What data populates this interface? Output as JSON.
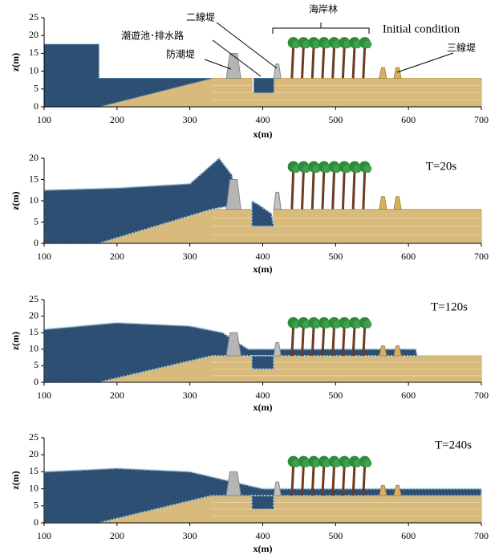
{
  "chart_data": [
    {
      "type": "simulation",
      "xlabel": "x(m)",
      "ylabel": "z(m)",
      "xlim": [
        100,
        700
      ],
      "xticks": [
        100,
        200,
        300,
        400,
        500,
        600,
        700
      ],
      "ylim": [
        0,
        25
      ],
      "yticks": [
        0,
        5,
        10,
        15,
        20,
        25
      ],
      "annotations": [
        "海岸林",
        "二線堤",
        "潮遊池･排水路",
        "防潮堤",
        "Initial  condition",
        "三線堤"
      ]
    },
    {
      "type": "simulation",
      "xlabel": "x(m)",
      "ylabel": "z(m)",
      "xlim": [
        100,
        700
      ],
      "xticks": [
        100,
        200,
        300,
        400,
        500,
        600,
        700
      ],
      "ylim": [
        0,
        20
      ],
      "yticks": [
        0,
        5,
        10,
        15,
        20
      ],
      "annotations": [
        "T=20s"
      ]
    },
    {
      "type": "simulation",
      "xlabel": "x(m)",
      "ylabel": "z(m)",
      "xlim": [
        100,
        700
      ],
      "xticks": [
        100,
        200,
        300,
        400,
        500,
        600,
        700
      ],
      "ylim": [
        0,
        25
      ],
      "yticks": [
        0,
        5,
        10,
        15,
        20,
        25
      ],
      "annotations": [
        "T=120s"
      ]
    },
    {
      "type": "simulation",
      "xlabel": "x(m)",
      "ylabel": "z(m)",
      "xlim": [
        100,
        700
      ],
      "xticks": [
        100,
        200,
        300,
        400,
        500,
        600,
        700
      ],
      "ylim": [
        0,
        25
      ],
      "yticks": [
        0,
        5,
        10,
        15,
        20,
        25
      ],
      "annotations": [
        "T=240s"
      ]
    }
  ]
}
